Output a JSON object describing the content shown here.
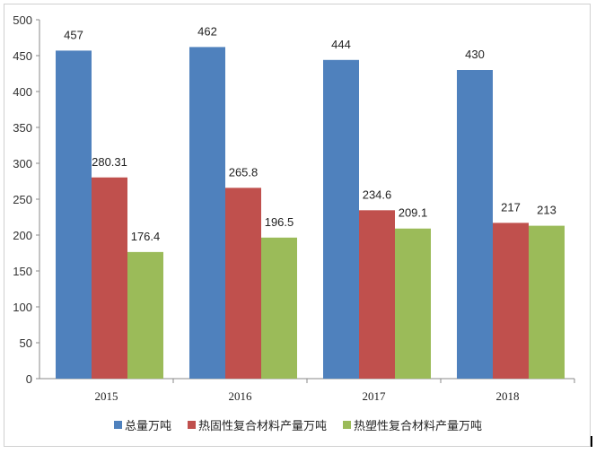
{
  "chart_data": {
    "type": "bar",
    "categories": [
      "2015",
      "2016",
      "2017",
      "2018"
    ],
    "series": [
      {
        "name": "总量万吨",
        "values": [
          457,
          462,
          444,
          430
        ],
        "labels": [
          "457",
          "462",
          "444",
          "430"
        ],
        "color": "#4f81bd"
      },
      {
        "name": "热固性复合材料产量万吨",
        "values": [
          280.31,
          265.8,
          234.6,
          217
        ],
        "labels": [
          "280.31",
          "265.8",
          "234.6",
          "217"
        ],
        "color": "#c0504d"
      },
      {
        "name": "热塑性复合材料产量万吨",
        "values": [
          176.4,
          196.5,
          209.1,
          213
        ],
        "labels": [
          "176.4",
          "196.5",
          "209.1",
          "213"
        ],
        "color": "#9bbb59"
      }
    ],
    "ylim": [
      0,
      500
    ],
    "yticks": [
      "0",
      "50",
      "100",
      "150",
      "200",
      "250",
      "300",
      "350",
      "400",
      "450",
      "500"
    ],
    "grid": false,
    "legend_position": "bottom"
  }
}
